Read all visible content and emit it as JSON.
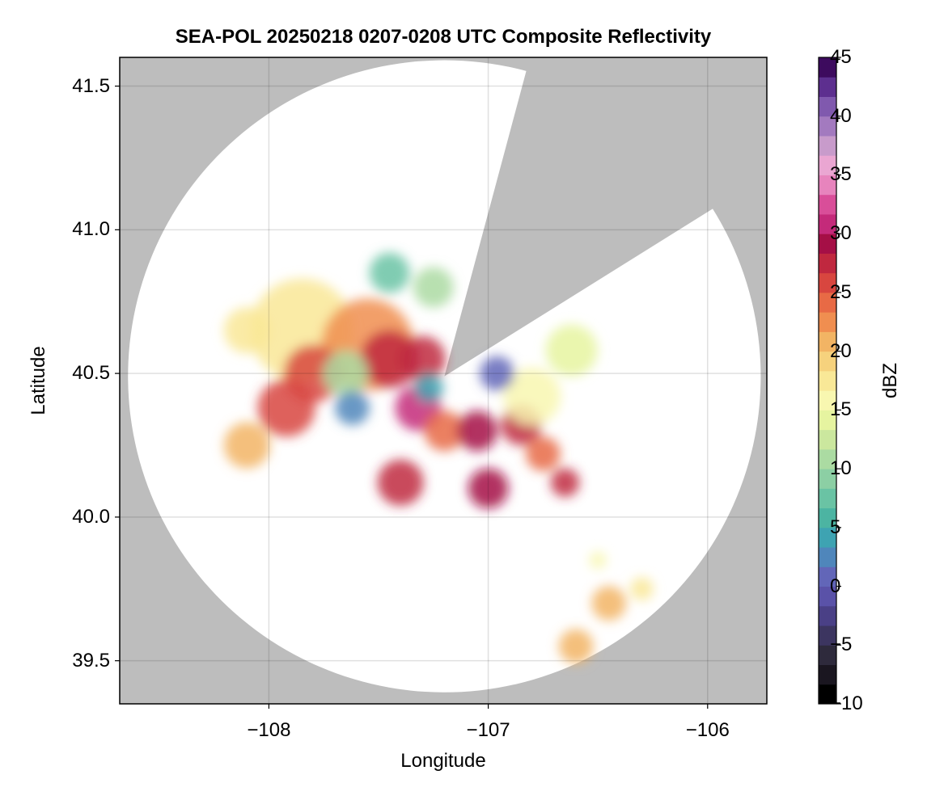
{
  "title": "SEA-POL 20250218 0207-0208 UTC Composite Reflectivity",
  "axes": {
    "xlabel": "Longitude",
    "ylabel": "Latitude",
    "xlim": [
      -108.68,
      -105.73
    ],
    "ylim": [
      39.35,
      41.6
    ],
    "xticks": [
      {
        "value": -108,
        "label": "−108"
      },
      {
        "value": -107,
        "label": "−107"
      },
      {
        "value": -106,
        "label": "−106"
      }
    ],
    "yticks": [
      {
        "value": 39.5,
        "label": "39.5"
      },
      {
        "value": 40.0,
        "label": "40.0"
      },
      {
        "value": 40.5,
        "label": "40.5"
      },
      {
        "value": 41.0,
        "label": "41.0"
      },
      {
        "value": 41.5,
        "label": "41.5"
      }
    ],
    "grid": true,
    "background_color": "#bdbdbd"
  },
  "radar": {
    "center": {
      "lon": -107.2,
      "lat": 40.49
    },
    "range_deg_lat": 1.1,
    "blocked_sector_azimuth_deg": [
      15,
      58
    ],
    "coverage_color": "#ffffff"
  },
  "colorbar": {
    "label": "dBZ",
    "min": -10,
    "max": 45,
    "ticks": [
      {
        "value": 45,
        "label": "45"
      },
      {
        "value": 40,
        "label": "40"
      },
      {
        "value": 35,
        "label": "35"
      },
      {
        "value": 30,
        "label": "30"
      },
      {
        "value": 25,
        "label": "25"
      },
      {
        "value": 20,
        "label": "20"
      },
      {
        "value": 15,
        "label": "15"
      },
      {
        "value": 10,
        "label": "10"
      },
      {
        "value": 5,
        "label": "5"
      },
      {
        "value": 0,
        "label": "0"
      },
      {
        "value": -5,
        "label": "−5"
      },
      {
        "value": -10,
        "label": "−10"
      }
    ],
    "colors": [
      "#000000",
      "#1a1620",
      "#2e2a3c",
      "#3c3560",
      "#4a4086",
      "#5a52a8",
      "#6266b8",
      "#4f86bb",
      "#3ea3b2",
      "#4cb4a2",
      "#6ac3a4",
      "#8ccfa4",
      "#abdba2",
      "#cbe79e",
      "#e6f4a0",
      "#f8f7b0",
      "#f9e897",
      "#f6d27d",
      "#f2b464",
      "#f08e50",
      "#e86a45",
      "#d8463f",
      "#c0283f",
      "#a50f46",
      "#c42a7a",
      "#d94e99",
      "#e784bd",
      "#eaa6d2",
      "#c89bcb",
      "#a37abf",
      "#8059ae",
      "#5d2f8f",
      "#3d0b5e"
    ],
    "color_step_dbz": 1.667
  },
  "reflectivity_echoes": [
    {
      "lon": -107.85,
      "lat": 40.65,
      "dbz": 18,
      "r": 0.18
    },
    {
      "lon": -107.55,
      "lat": 40.6,
      "dbz": 22,
      "r": 0.16
    },
    {
      "lon": -107.45,
      "lat": 40.55,
      "dbz": 28,
      "r": 0.1
    },
    {
      "lon": -107.3,
      "lat": 40.55,
      "dbz": 27,
      "r": 0.08
    },
    {
      "lon": -107.8,
      "lat": 40.5,
      "dbz": 25,
      "r": 0.1
    },
    {
      "lon": -107.65,
      "lat": 40.5,
      "dbz": 10,
      "r": 0.08
    },
    {
      "lon": -107.92,
      "lat": 40.38,
      "dbz": 26,
      "r": 0.1
    },
    {
      "lon": -107.62,
      "lat": 40.38,
      "dbz": 3,
      "r": 0.06
    },
    {
      "lon": -107.32,
      "lat": 40.38,
      "dbz": 30,
      "r": 0.08
    },
    {
      "lon": -107.2,
      "lat": 40.3,
      "dbz": 24,
      "r": 0.07
    },
    {
      "lon": -107.05,
      "lat": 40.3,
      "dbz": 29,
      "r": 0.07
    },
    {
      "lon": -106.85,
      "lat": 40.32,
      "dbz": 28,
      "r": 0.07
    },
    {
      "lon": -106.75,
      "lat": 40.22,
      "dbz": 24,
      "r": 0.06
    },
    {
      "lon": -107.4,
      "lat": 40.12,
      "dbz": 28,
      "r": 0.08
    },
    {
      "lon": -107.0,
      "lat": 40.1,
      "dbz": 29,
      "r": 0.07
    },
    {
      "lon": -106.65,
      "lat": 40.12,
      "dbz": 28,
      "r": 0.05
    },
    {
      "lon": -106.8,
      "lat": 40.42,
      "dbz": 16,
      "r": 0.1
    },
    {
      "lon": -106.62,
      "lat": 40.58,
      "dbz": 14,
      "r": 0.09
    },
    {
      "lon": -106.96,
      "lat": 40.5,
      "dbz": 1,
      "r": 0.06
    },
    {
      "lon": -107.27,
      "lat": 40.45,
      "dbz": 4,
      "r": 0.05
    },
    {
      "lon": -107.45,
      "lat": 40.85,
      "dbz": 8,
      "r": 0.07
    },
    {
      "lon": -107.25,
      "lat": 40.8,
      "dbz": 10,
      "r": 0.07
    },
    {
      "lon": -108.1,
      "lat": 40.65,
      "dbz": 17,
      "r": 0.08
    },
    {
      "lon": -108.1,
      "lat": 40.25,
      "dbz": 20,
      "r": 0.08
    },
    {
      "lon": -106.45,
      "lat": 39.7,
      "dbz": 20,
      "r": 0.06
    },
    {
      "lon": -106.6,
      "lat": 39.55,
      "dbz": 21,
      "r": 0.06
    },
    {
      "lon": -106.3,
      "lat": 39.75,
      "dbz": 18,
      "r": 0.04
    },
    {
      "lon": -106.5,
      "lat": 39.85,
      "dbz": 15,
      "r": 0.03
    }
  ]
}
